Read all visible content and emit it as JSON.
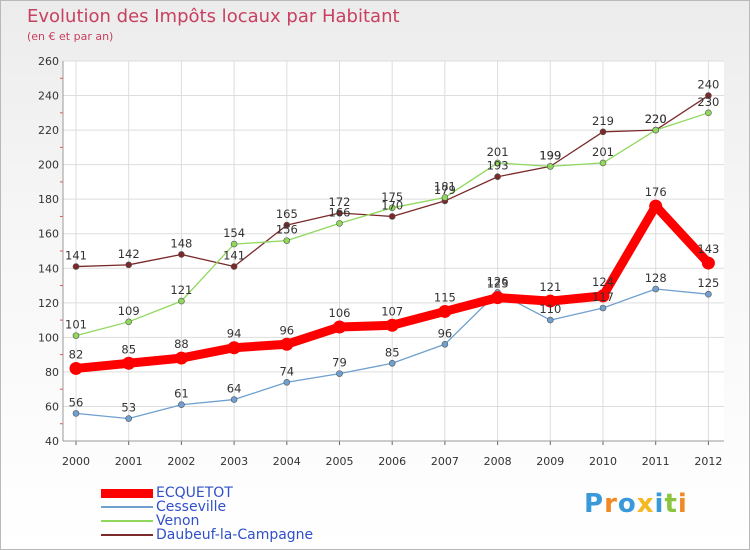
{
  "chart_data": {
    "type": "line",
    "title": "Evolution des Impôts locaux par Habitant",
    "subtitle": "(en € et par an)",
    "xlabel": "",
    "ylabel": "",
    "ylim": [
      40,
      260
    ],
    "y_ticks": [
      "40",
      "60",
      "80",
      "100",
      "120",
      "140",
      "160",
      "180",
      "200",
      "220",
      "240",
      "260"
    ],
    "x": [
      "2000",
      "2001",
      "2002",
      "2003",
      "2004",
      "2005",
      "2006",
      "2007",
      "2008",
      "2009",
      "2010",
      "2011",
      "2012"
    ],
    "grid": true,
    "legend_position": "bottom-left",
    "series": [
      {
        "name": "ECQUETOT",
        "color": "#ff0000",
        "values": [
          82,
          85,
          88,
          94,
          96,
          106,
          107,
          115,
          123,
          121,
          124,
          176,
          143
        ],
        "labels": [
          "82",
          "85",
          "88",
          "94",
          "96",
          "106",
          "107",
          "115",
          "123",
          "121",
          "124",
          "176",
          "143"
        ]
      },
      {
        "name": "Cesseville",
        "color": "#6fa0cf",
        "values": [
          56,
          53,
          61,
          64,
          74,
          79,
          85,
          96,
          126,
          110,
          117,
          128,
          125
        ],
        "labels": [
          "56",
          "53",
          "61",
          "64",
          "74",
          "79",
          "85",
          "96",
          "126",
          "110",
          "117",
          "128",
          "125"
        ]
      },
      {
        "name": "Venon",
        "color": "#8fd85c",
        "values": [
          101,
          109,
          121,
          154,
          156,
          166,
          175,
          181,
          201,
          199,
          201,
          220,
          230
        ],
        "labels": [
          "101",
          "109",
          "121",
          "154",
          "156",
          "166",
          "175",
          "181",
          "201",
          "199",
          "201",
          "220",
          "230"
        ]
      },
      {
        "name": "Daubeuf-la-Campagne",
        "color": "#7a2a2a",
        "values": [
          141,
          142,
          148,
          141,
          165,
          172,
          170,
          179,
          193,
          199,
          219,
          220,
          240
        ],
        "labels": [
          "141",
          "142",
          "148",
          "141",
          "165",
          "172",
          "170",
          "179",
          "193",
          "199",
          "219",
          "220",
          "240"
        ]
      }
    ]
  },
  "brand": {
    "letters": [
      {
        "ch": "P",
        "color": "#3a9ad9"
      },
      {
        "ch": "r",
        "color": "#f08a24"
      },
      {
        "ch": "o",
        "color": "#3a9ad9"
      },
      {
        "ch": "x",
        "color": "#f5b820"
      },
      {
        "ch": "i",
        "color": "#3a9ad9"
      },
      {
        "ch": "t",
        "color": "#8bc53f"
      },
      {
        "ch": "i",
        "color": "#f08a24"
      }
    ]
  }
}
